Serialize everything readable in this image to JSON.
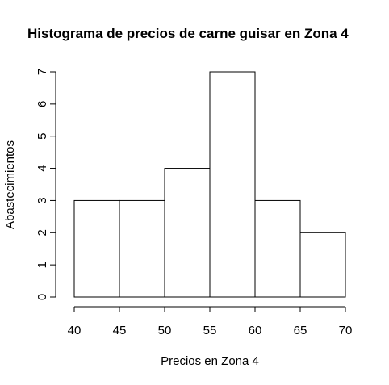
{
  "chart_data": {
    "type": "bar",
    "title": "Histograma de precios de carne guisar en Zona 4",
    "xlabel": "Precios en Zona 4",
    "ylabel": "Abastecimientos",
    "bins": [
      {
        "from": 40,
        "to": 45,
        "count": 3
      },
      {
        "from": 45,
        "to": 50,
        "count": 3
      },
      {
        "from": 50,
        "to": 55,
        "count": 4
      },
      {
        "from": 55,
        "to": 60,
        "count": 7
      },
      {
        "from": 60,
        "to": 65,
        "count": 3
      },
      {
        "from": 65,
        "to": 70,
        "count": 2
      }
    ],
    "xlim": [
      40,
      70
    ],
    "ylim": [
      0,
      7
    ],
    "x_ticks": [
      "40",
      "45",
      "50",
      "55",
      "60",
      "65",
      "70"
    ],
    "y_ticks": [
      "0",
      "1",
      "2",
      "3",
      "4",
      "5",
      "6",
      "7"
    ],
    "grid": false,
    "legend": "none",
    "bar_fill": "#ffffff",
    "bar_stroke": "#000000"
  }
}
